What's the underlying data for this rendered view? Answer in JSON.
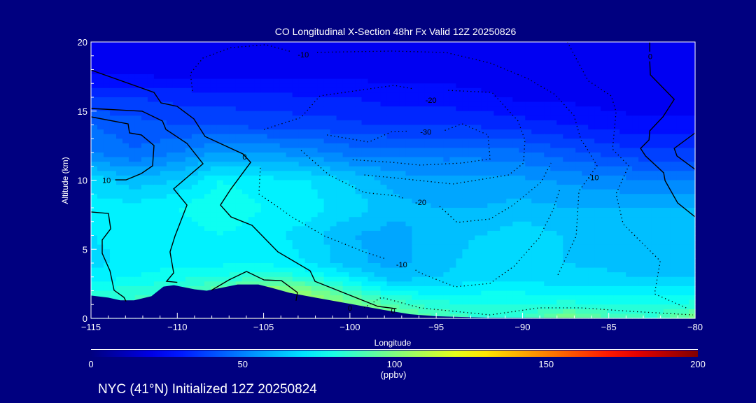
{
  "title": "CO Longitudinal X-Section 48hr  Fx Valid 12Z 20250826",
  "footer": "NYC (41°N) Initialized 12Z 20250824",
  "colors": {
    "background": "#000080",
    "terrain": "#000080",
    "contour_line": "#000000",
    "text": "#ffffff"
  },
  "chart_data": {
    "type": "heatmap",
    "title": "CO Longitudinal X-Section 48hr  Fx Valid 12Z 20250826",
    "xlabel": "Longitude",
    "ylabel": "Altitude (km)",
    "xlim": [
      -115,
      -80
    ],
    "ylim": [
      0,
      20
    ],
    "xticks": [
      -115,
      -110,
      -105,
      -100,
      -95,
      -90,
      -85,
      -80
    ],
    "xtick_labels": [
      "−115",
      "−110",
      "−105",
      "−100",
      "−95",
      "−90",
      "−85",
      "−80"
    ],
    "yticks": [
      0,
      5,
      10,
      15,
      20
    ],
    "ytick_labels": [
      "0",
      "5",
      "10",
      "15",
      "20"
    ],
    "colorbar": {
      "colormap": "jet",
      "range": [
        0,
        200
      ],
      "ticks": [
        0,
        50,
        100,
        150,
        200
      ],
      "tick_labels": [
        "0",
        "50",
        "100",
        "150",
        "200"
      ],
      "unit_label": "(ppbv)",
      "placement": "bottom"
    },
    "grid_lon": [
      -115,
      -112.5,
      -110,
      -107.5,
      -105,
      -102.5,
      -100,
      -97.5,
      -95,
      -92.5,
      -90,
      -87.5,
      -85,
      -82.5,
      -80
    ],
    "grid_alt": [
      0,
      1,
      2,
      3,
      4,
      6,
      8,
      10,
      12,
      14,
      16,
      18,
      20
    ],
    "co_ppbv": [
      [
        85,
        90,
        100,
        110,
        120,
        115,
        110,
        100,
        90,
        85,
        85,
        100,
        90,
        85,
        100
      ],
      [
        85,
        88,
        95,
        105,
        115,
        110,
        100,
        90,
        82,
        80,
        80,
        82,
        80,
        80,
        82
      ],
      [
        80,
        82,
        85,
        95,
        105,
        100,
        85,
        74,
        72,
        74,
        74,
        72,
        72,
        72,
        72
      ],
      [
        72,
        75,
        78,
        80,
        85,
        80,
        72,
        62,
        65,
        68,
        68,
        66,
        66,
        64,
        64
      ],
      [
        68,
        72,
        74,
        74,
        74,
        70,
        62,
        58,
        62,
        68,
        68,
        65,
        64,
        62,
        62
      ],
      [
        70,
        72,
        72,
        75,
        72,
        68,
        60,
        58,
        62,
        65,
        68,
        65,
        62,
        62,
        62
      ],
      [
        72,
        72,
        75,
        80,
        75,
        72,
        68,
        62,
        60,
        60,
        62,
        60,
        60,
        60,
        60
      ],
      [
        68,
        62,
        65,
        75,
        72,
        70,
        65,
        58,
        56,
        56,
        56,
        54,
        52,
        50,
        50
      ],
      [
        50,
        45,
        50,
        55,
        55,
        52,
        48,
        48,
        48,
        48,
        46,
        42,
        38,
        36,
        36
      ],
      [
        45,
        42,
        40,
        40,
        38,
        38,
        36,
        34,
        34,
        34,
        32,
        30,
        28,
        26,
        26
      ],
      [
        35,
        35,
        33,
        32,
        32,
        30,
        30,
        28,
        28,
        26,
        24,
        24,
        22,
        22,
        22
      ],
      [
        22,
        22,
        22,
        22,
        22,
        22,
        22,
        22,
        22,
        22,
        22,
        22,
        22,
        22,
        22
      ],
      [
        20,
        20,
        20,
        20,
        20,
        20,
        20,
        20,
        20,
        20,
        20,
        20,
        20,
        20,
        20
      ]
    ],
    "terrain": [
      [
        -115,
        1.65
      ],
      [
        -114,
        1.5
      ],
      [
        -113.3,
        1.3
      ],
      [
        -112.5,
        1.3
      ],
      [
        -111.5,
        1.6
      ],
      [
        -110.8,
        2.3
      ],
      [
        -110.2,
        2.4
      ],
      [
        -109,
        2.1
      ],
      [
        -108.3,
        2.0
      ],
      [
        -107.5,
        2.2
      ],
      [
        -106.5,
        2.45
      ],
      [
        -105.3,
        2.45
      ],
      [
        -104.5,
        2.2
      ],
      [
        -103.5,
        1.85
      ],
      [
        -102,
        1.5
      ],
      [
        -100,
        1.05
      ],
      [
        -98,
        0.6
      ],
      [
        -96.5,
        0.3
      ],
      [
        -95,
        0.15
      ],
      [
        -92,
        0.05
      ],
      [
        -80,
        0.02
      ]
    ],
    "contours": [
      {
        "style": "solid",
        "points": [
          [
            -115,
            17.97
          ],
          [
            -111.35,
            16.35
          ],
          [
            -110.94,
            15.59
          ],
          [
            -110.01,
            15.34
          ],
          [
            -109.04,
            14.43
          ],
          [
            -108.39,
            13.16
          ],
          [
            -106.2,
            11.9
          ],
          [
            -105.75,
            11.29
          ],
          [
            -106.08,
            10.73
          ],
          [
            -106.89,
            9.37
          ],
          [
            -107.5,
            8.2
          ],
          [
            -106.89,
            7.34
          ],
          [
            -105.67,
            6.73
          ],
          [
            -104.17,
            4.81
          ],
          [
            -102.3,
            3.44
          ],
          [
            -102.02,
            2.68
          ],
          [
            -98.37,
            0.86
          ],
          [
            -97.3,
            0.7
          ]
        ]
      },
      {
        "style": "solid",
        "points": [
          [
            -115,
            15.19
          ],
          [
            -112.04,
            14.99
          ],
          [
            -110.86,
            14.28
          ],
          [
            -110.66,
            13.67
          ],
          [
            -109.44,
            12.66
          ],
          [
            -108.51,
            11.19
          ],
          [
            -110.21,
            9.37
          ],
          [
            -109.44,
            8.2
          ],
          [
            -110.13,
            5.97
          ],
          [
            -110.42,
            4.81
          ],
          [
            -110.21,
            3.29
          ],
          [
            -110.62,
            2.68
          ],
          [
            -110.0,
            2.6
          ]
        ]
      },
      {
        "style": "solid",
        "points": [
          [
            -115,
            14.58
          ],
          [
            -112.85,
            14.07
          ],
          [
            -112.77,
            13.42
          ],
          [
            -112.08,
            13.27
          ],
          [
            -111.35,
            12.51
          ],
          [
            -111.43,
            11.04
          ],
          [
            -112.08,
            10.48
          ],
          [
            -112.97,
            10.02
          ],
          [
            -113.6,
            10.02
          ]
        ]
      },
      {
        "style": "solid",
        "points": [
          [
            -115,
            7.7
          ],
          [
            -113.99,
            7.59
          ],
          [
            -113.86,
            6.48
          ],
          [
            -114.35,
            5.67
          ],
          [
            -114.35,
            4.71
          ],
          [
            -113.9,
            3.44
          ],
          [
            -113.66,
            2.03
          ],
          [
            -113.09,
            1.52
          ],
          [
            -112.97,
            1.22
          ]
        ]
      },
      {
        "style": "solid",
        "points": [
          [
            -108.02,
            2.03
          ],
          [
            -107.01,
            2.78
          ],
          [
            -105.99,
            3.39
          ],
          [
            -104.98,
            2.78
          ],
          [
            -103.97,
            2.73
          ],
          [
            -103.04,
            1.87
          ],
          [
            -103.12,
            1.27
          ]
        ]
      },
      {
        "style": "solid",
        "points": [
          [
            -82.63,
            20
          ],
          [
            -82.63,
            19.3
          ]
        ]
      },
      {
        "style": "solid",
        "points": [
          [
            -82.63,
            18.6
          ],
          [
            -82.59,
            17.62
          ],
          [
            -81.21,
            15.85
          ],
          [
            -81.86,
            14.58
          ],
          [
            -82.63,
            13.57
          ],
          [
            -82.67,
            12.91
          ],
          [
            -83.16,
            12.3
          ],
          [
            -82.87,
            11.75
          ],
          [
            -81.82,
            10.53
          ],
          [
            -81.74,
            9.97
          ],
          [
            -81.01,
            8.35
          ],
          [
            -80,
            7.34
          ]
        ]
      },
      {
        "style": "solid",
        "points": [
          [
            -80,
            13.42
          ],
          [
            -81.21,
            12.3
          ],
          [
            -81.05,
            11.75
          ],
          [
            -80,
            10.78
          ]
        ]
      },
      {
        "style": "dotted",
        "points": [
          [
            -109.12,
            16.46
          ],
          [
            -109.24,
            17.72
          ],
          [
            -108.51,
            18.84
          ],
          [
            -106.89,
            19.59
          ],
          [
            -104.86,
            19.8
          ],
          [
            -103.4,
            19.3
          ]
        ]
      },
      {
        "style": "dotted",
        "points": [
          [
            -101.9,
            19.25
          ],
          [
            -97.56,
            19.34
          ],
          [
            -94.44,
            19.24
          ],
          [
            -91.88,
            18.48
          ],
          [
            -89.73,
            17.37
          ],
          [
            -88.11,
            16.2
          ],
          [
            -87.02,
            14.68
          ],
          [
            -86.61,
            12.91
          ],
          [
            -86.32,
            12.4
          ],
          [
            -85.68,
            11.04
          ],
          [
            -86.73,
            9.21
          ],
          [
            -86.89,
            5.97
          ],
          [
            -87.95,
            3.14
          ]
        ]
      },
      {
        "style": "dotted",
        "points": [
          [
            -87.4,
            20
          ],
          [
            -86.2,
            17.2
          ],
          [
            -84.86,
            16.1
          ],
          [
            -84.58,
            14.94
          ],
          [
            -84.78,
            12.25
          ],
          [
            -83.85,
            11.04
          ],
          [
            -84.58,
            9.01
          ],
          [
            -84.17,
            6.83
          ],
          [
            -82.02,
            4.15
          ],
          [
            -82.35,
            1.77
          ],
          [
            -80.52,
            0.76
          ]
        ]
      },
      {
        "style": "dotted",
        "points": [
          [
            -104.98,
            13.67
          ],
          [
            -102.83,
            14.53
          ],
          [
            -101.74,
            16.1
          ],
          [
            -97.44,
            16.86
          ],
          [
            -96.3,
            16.6
          ]
        ]
      },
      {
        "style": "dotted",
        "points": [
          [
            -94.3,
            16.5
          ],
          [
            -91.76,
            16.35
          ],
          [
            -90.26,
            14.28
          ],
          [
            -89.86,
            12.91
          ],
          [
            -89.94,
            11.24
          ],
          [
            -90.79,
            10.38
          ],
          [
            -94.03,
            9.72
          ],
          [
            -97.16,
            10.13
          ],
          [
            -99.18,
            10.38
          ]
        ]
      },
      {
        "style": "dotted",
        "points": [
          [
            -101.33,
            13.27
          ],
          [
            -98.9,
            12.76
          ],
          [
            -97.56,
            13.52
          ],
          [
            -96.6,
            13.55
          ]
        ]
      },
      {
        "style": "dotted",
        "points": [
          [
            -94.5,
            13.6
          ],
          [
            -93.5,
            14.08
          ],
          [
            -92.0,
            13.27
          ],
          [
            -91.88,
            11.54
          ],
          [
            -93.5,
            11.24
          ],
          [
            -95.94,
            11.09
          ],
          [
            -97.56,
            11.29
          ],
          [
            -99.99,
            11.49
          ]
        ]
      },
      {
        "style": "dotted",
        "points": [
          [
            -102.83,
            12.15
          ],
          [
            -101.21,
            10.38
          ],
          [
            -99.18,
            9.11
          ],
          [
            -97.28,
            8.86
          ],
          [
            -96.9,
            8.7
          ]
        ]
      },
      {
        "style": "dotted",
        "points": [
          [
            -94.8,
            8.1
          ],
          [
            -93.79,
            6.94
          ],
          [
            -91.88,
            7.19
          ],
          [
            -90.54,
            8.2
          ],
          [
            -88.92,
            9.87
          ],
          [
            -88.35,
            11.24
          ]
        ]
      },
      {
        "style": "dotted",
        "points": [
          [
            -105.19,
            10.89
          ],
          [
            -105.27,
            9.01
          ],
          [
            -103.36,
            7.34
          ],
          [
            -101.49,
            5.97
          ],
          [
            -99.18,
            4.81
          ],
          [
            -97.9,
            4.3
          ]
        ]
      },
      {
        "style": "dotted",
        "points": [
          [
            -96.2,
            3.5
          ],
          [
            -95.94,
            3.29
          ],
          [
            -93.91,
            2.28
          ],
          [
            -91.88,
            2.53
          ],
          [
            -90.46,
            3.8
          ],
          [
            -89.04,
            5.82
          ],
          [
            -88.23,
            7.85
          ],
          [
            -87.83,
            9.37
          ]
        ]
      },
      {
        "style": "dotted",
        "points": [
          [
            -99.18,
            0.76
          ],
          [
            -98.17,
            1.52
          ],
          [
            -95.94,
            0.76
          ],
          [
            -91.88,
            0.25
          ],
          [
            -89.04,
            0.76
          ],
          [
            -86.61,
            0.76
          ],
          [
            -83.77,
            0.51
          ],
          [
            -80.12,
            0.25
          ]
        ]
      }
    ],
    "contour_labels": [
      {
        "text": "-10",
        "lon": -102.7,
        "alt": 19.1
      },
      {
        "text": "-20",
        "lon": -95.3,
        "alt": 15.8
      },
      {
        "text": "-30",
        "lon": -95.6,
        "alt": 13.5
      },
      {
        "text": "-20",
        "lon": -95.9,
        "alt": 8.4
      },
      {
        "text": "-10",
        "lon": -97.0,
        "alt": 3.9
      },
      {
        "text": "-10",
        "lon": -85.9,
        "alt": 10.2
      },
      {
        "text": "0",
        "lon": -106.1,
        "alt": 11.7
      },
      {
        "text": "10",
        "lon": -114.1,
        "alt": 10.0
      },
      {
        "text": "0",
        "lon": -100.0,
        "alt": 0.75
      },
      {
        "text": "0",
        "lon": -97.5,
        "alt": 0.55
      },
      {
        "text": "0",
        "lon": -82.6,
        "alt": 18.95
      }
    ]
  }
}
